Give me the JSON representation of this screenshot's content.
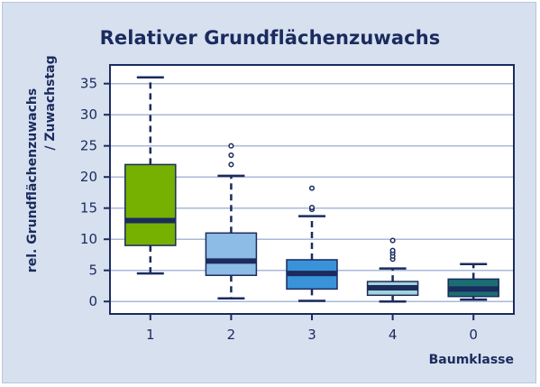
{
  "chart_data": {
    "type": "box",
    "title": "Relativer Grundflächenzuwachs",
    "xlabel": "Baumklasse",
    "ylabel_line1": "rel. Grundflächenzuwachs",
    "ylabel_line2": "/ Zuwachstag",
    "ylim": [
      -2,
      38
    ],
    "yticks": [
      0,
      5,
      10,
      15,
      20,
      25,
      30,
      35
    ],
    "grid": "horizontal",
    "categories": [
      "1",
      "2",
      "3",
      "4",
      "0"
    ],
    "boxes": [
      {
        "category": "1",
        "whisker_low": 4.5,
        "q1": 9,
        "median": 13,
        "q3": 22,
        "whisker_high": 36,
        "outliers": [],
        "color": "#76b000"
      },
      {
        "category": "2",
        "whisker_low": 0.5,
        "q1": 4.2,
        "median": 6.5,
        "q3": 11,
        "whisker_high": 20.2,
        "outliers": [
          22,
          23.5,
          25
        ],
        "color": "#8dbde7"
      },
      {
        "category": "3",
        "whisker_low": 0.1,
        "q1": 2,
        "median": 4.5,
        "q3": 6.7,
        "whisker_high": 13.7,
        "outliers": [
          14.8,
          15.1,
          18.2
        ],
        "color": "#3a93d8"
      },
      {
        "category": "4",
        "whisker_low": 0,
        "q1": 1,
        "median": 2.2,
        "q3": 3.2,
        "whisker_high": 5.3,
        "outliers": [
          6.8,
          7.3,
          7.8,
          8.2,
          9.8
        ],
        "color": "#a4d4d9"
      },
      {
        "category": "0",
        "whisker_low": 0.3,
        "q1": 0.8,
        "median": 2,
        "q3": 3.6,
        "whisker_high": 6,
        "outliers": [],
        "color": "#1a6e72"
      }
    ],
    "colors": {
      "axis": "#1b2b5e",
      "grid": "#a9b9d8",
      "plot_background": "#ffffff",
      "frame_background": "#d6e0ef"
    }
  }
}
